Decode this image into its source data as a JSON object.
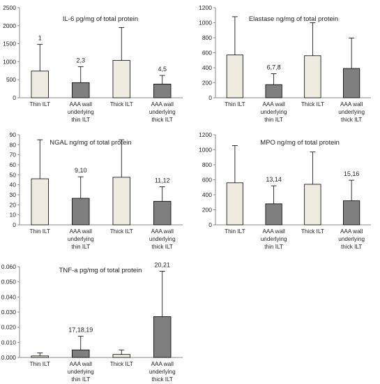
{
  "chart_data": [
    {
      "type": "bar",
      "title": "IL-6 pg/mg of total protein",
      "categories": [
        "Thin ILT",
        "AAA wall underlying thin ILT",
        "Thick ILT",
        "AAA wall underlying thick ILT"
      ],
      "values": [
        740,
        420,
        1035,
        380
      ],
      "error_upper": [
        1480,
        860,
        1950,
        620
      ],
      "annotations": [
        "1",
        "2,3",
        "",
        "4,5"
      ],
      "ylim": [
        0,
        2500
      ],
      "yticks": [
        "0",
        "500",
        "1000",
        "1500",
        "2000",
        "2500"
      ]
    },
    {
      "type": "bar",
      "title": "Elastase ng/mg of total protein",
      "categories": [
        "Thin ILT",
        "AAA wall underlying thin ILT",
        "Thick ILT",
        "AAA wall underlying thick ILT"
      ],
      "values": [
        570,
        175,
        560,
        390
      ],
      "error_upper": [
        1080,
        320,
        1000,
        795
      ],
      "annotations": [
        "",
        "6,7,8",
        "",
        ""
      ],
      "ylim": [
        0,
        1200
      ],
      "yticks": [
        "0",
        "200",
        "400",
        "600",
        "800",
        "1000",
        "1200"
      ]
    },
    {
      "type": "bar",
      "title": "NGAL ng/mg of total protein",
      "categories": [
        "Thin ILT",
        "AAA wall underlying thin ILT",
        "Thick ILT",
        "AAA wall underlying thick ILT"
      ],
      "values": [
        46,
        26.5,
        47.5,
        23.5
      ],
      "error_upper": [
        85,
        48,
        85,
        38
      ],
      "annotations": [
        "",
        "9,10",
        "",
        "11,12"
      ],
      "ylim": [
        0,
        90
      ],
      "yticks": [
        "0",
        "10",
        "20",
        "30",
        "40",
        "50",
        "60",
        "70",
        "80",
        "90"
      ]
    },
    {
      "type": "bar",
      "title": "MPO ng/mg of total protein",
      "categories": [
        "Thin ILT",
        "AAA wall underlying thin ILT",
        "Thick ILT",
        "AAA wall underlying thick ILT"
      ],
      "values": [
        560,
        280,
        540,
        320
      ],
      "error_upper": [
        1055,
        520,
        970,
        595
      ],
      "annotations": [
        "",
        "13,14",
        "",
        "15,16"
      ],
      "ylim": [
        0,
        1200
      ],
      "yticks": [
        "0",
        "200",
        "400",
        "600",
        "800",
        "1000",
        "1200"
      ]
    },
    {
      "type": "bar",
      "title": "TNF-a pg/mg of total protein",
      "categories": [
        "Thin ILT",
        "AAA wall underlying thin ILT",
        "Thick ILT",
        "AAA wall underlying thick ILT"
      ],
      "values": [
        0.001,
        0.005,
        0.002,
        0.027
      ],
      "error_upper": [
        0.003,
        0.014,
        0.005,
        0.057
      ],
      "annotations": [
        "",
        "17,18,19",
        "",
        "20,21"
      ],
      "ylim": [
        0,
        0.06
      ],
      "yticks": [
        "0.000",
        "0.010",
        "0.020",
        "0.030",
        "0.040",
        "0.050",
        "0.060"
      ]
    }
  ],
  "colors": {
    "thin_bar": "#eeece1",
    "wall_bar": "#7f7f7f",
    "outline": "#000000",
    "axis": "#888888"
  }
}
